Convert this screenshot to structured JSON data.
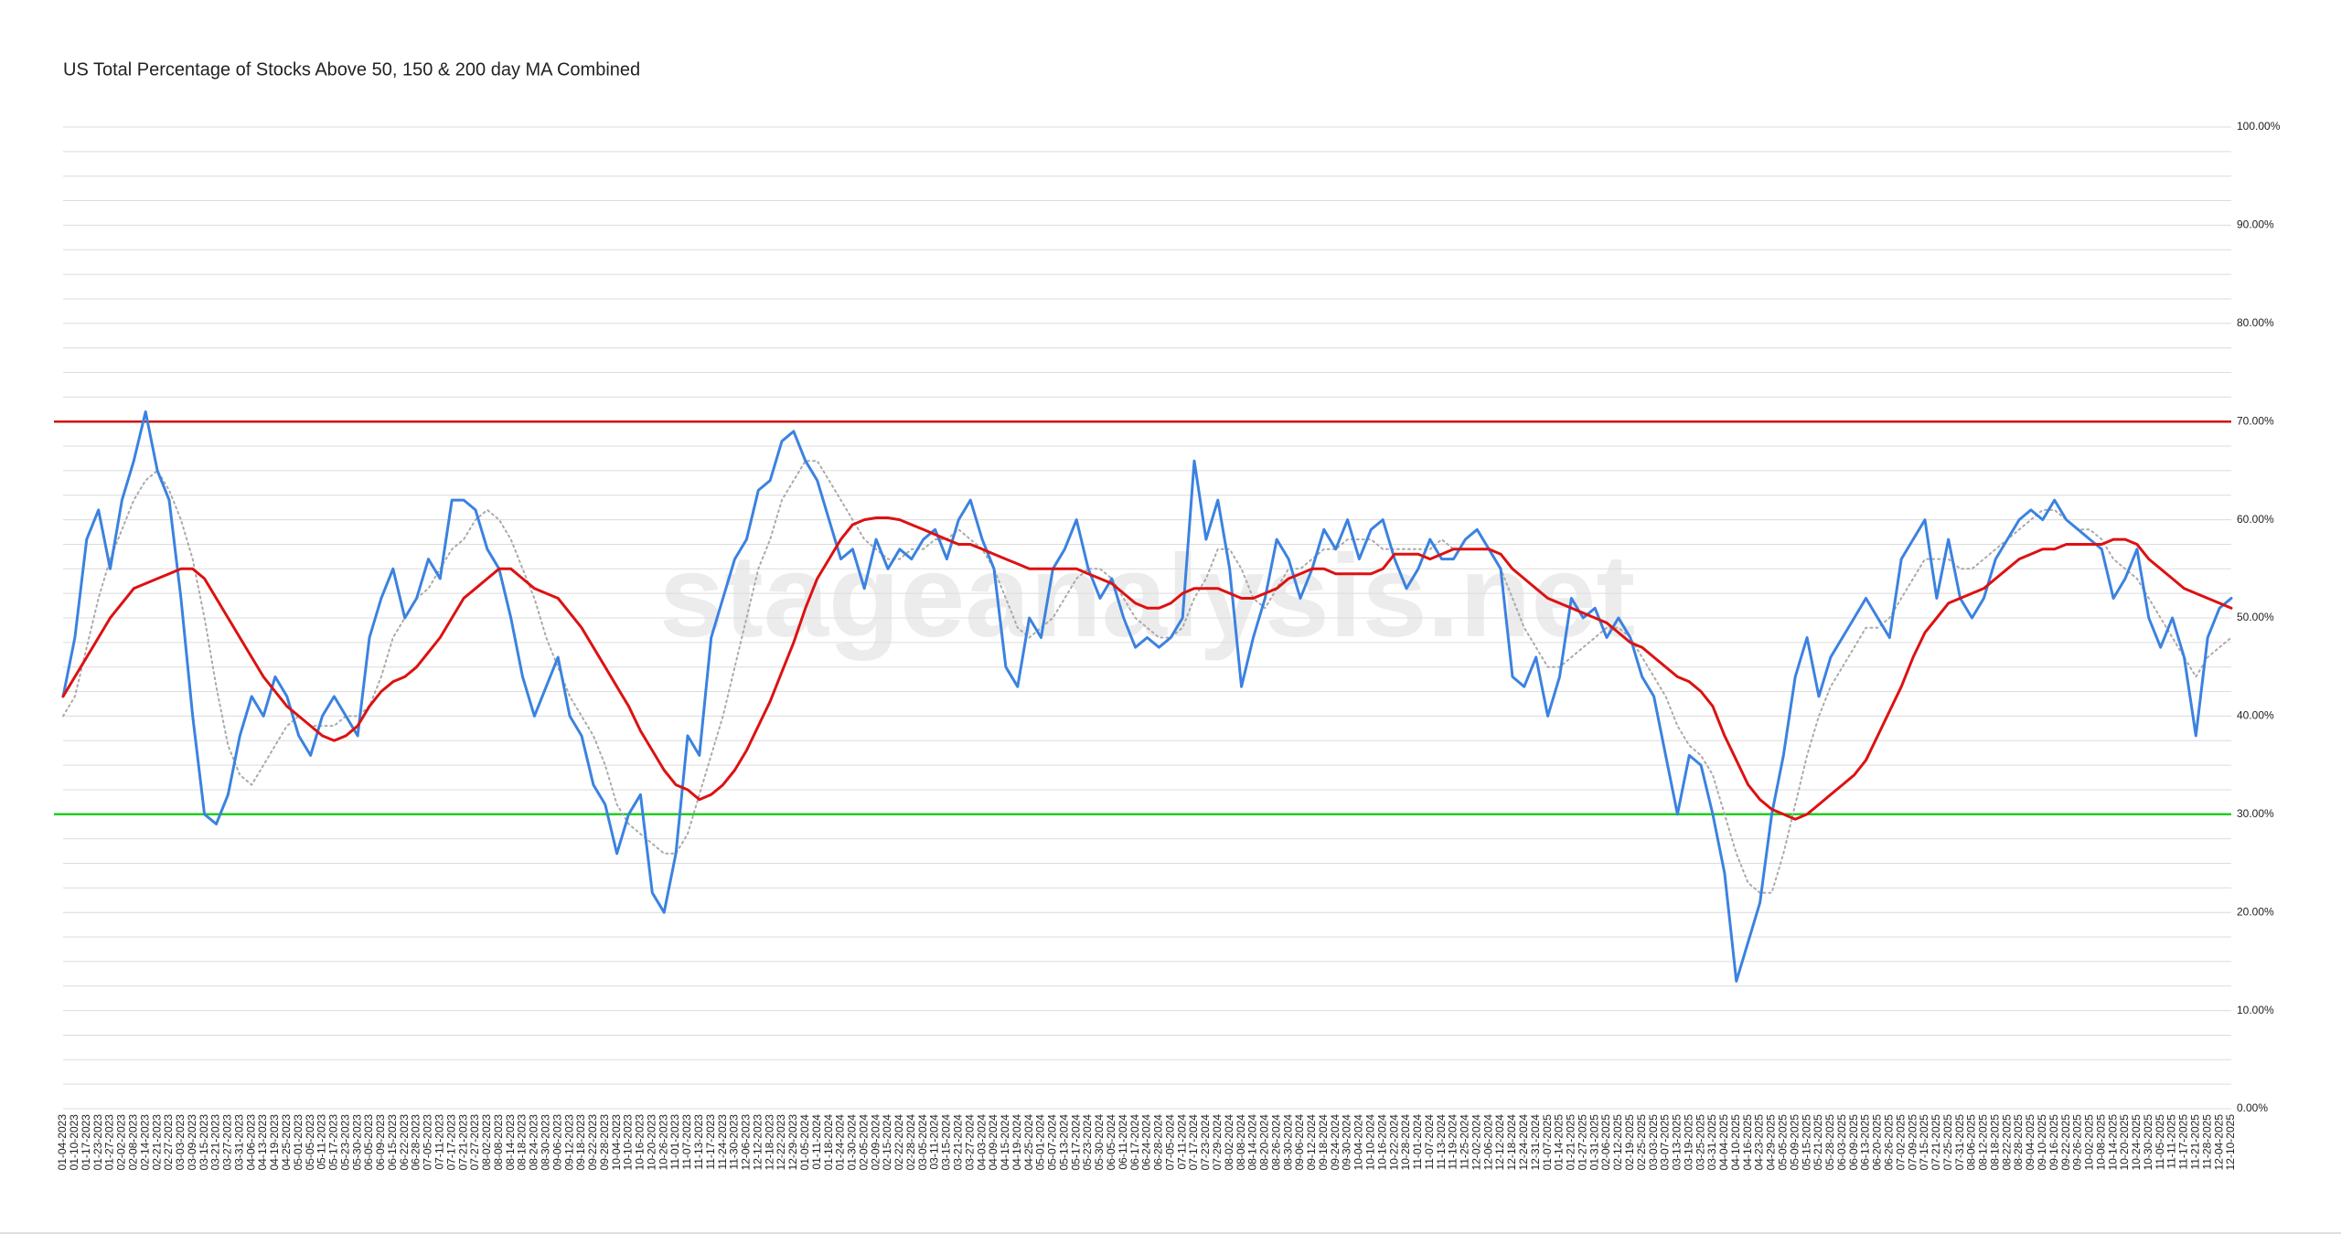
{
  "chart_data": {
    "type": "line",
    "title": "US Total Percentage of Stocks Above 50, 150 & 200 day MA Combined",
    "watermark": "stageanalysis.net",
    "x": [
      "01-04-2023",
      "01-10-2023",
      "01-17-2023",
      "01-23-2023",
      "01-27-2023",
      "02-02-2023",
      "02-08-2023",
      "02-14-2023",
      "02-21-2023",
      "02-27-2023",
      "03-03-2023",
      "03-09-2023",
      "03-15-2023",
      "03-21-2023",
      "03-27-2023",
      "03-31-2023",
      "04-06-2023",
      "04-13-2023",
      "04-19-2023",
      "04-25-2023",
      "05-01-2023",
      "05-05-2023",
      "05-11-2023",
      "05-17-2023",
      "05-23-2023",
      "05-30-2023",
      "06-05-2023",
      "06-09-2023",
      "06-15-2023",
      "06-22-2023",
      "06-28-2023",
      "07-05-2023",
      "07-11-2023",
      "07-17-2023",
      "07-21-2023",
      "07-27-2023",
      "08-02-2023",
      "08-08-2023",
      "08-14-2023",
      "08-18-2023",
      "08-24-2023",
      "08-30-2023",
      "09-06-2023",
      "09-12-2023",
      "09-18-2023",
      "09-22-2023",
      "09-28-2023",
      "10-04-2023",
      "10-10-2023",
      "10-16-2023",
      "10-20-2023",
      "10-26-2023",
      "11-01-2023",
      "11-07-2023",
      "11-13-2023",
      "11-17-2023",
      "11-24-2023",
      "11-30-2023",
      "12-06-2023",
      "12-12-2023",
      "12-18-2023",
      "12-22-2023",
      "12-29-2023",
      "01-05-2024",
      "01-11-2024",
      "01-18-2024",
      "01-24-2024",
      "01-30-2024",
      "02-05-2024",
      "02-09-2024",
      "02-15-2024",
      "02-22-2024",
      "02-28-2024",
      "03-05-2024",
      "03-11-2024",
      "03-15-2024",
      "03-21-2024",
      "03-27-2024",
      "04-03-2024",
      "04-09-2024",
      "04-15-2024",
      "04-19-2024",
      "04-25-2024",
      "05-01-2024",
      "05-07-2024",
      "05-13-2024",
      "05-17-2024",
      "05-23-2024",
      "05-30-2024",
      "06-05-2024",
      "06-11-2024",
      "06-17-2024",
      "06-24-2024",
      "06-28-2024",
      "07-05-2024",
      "07-11-2024",
      "07-17-2024",
      "07-23-2024",
      "07-29-2024",
      "08-02-2024",
      "08-08-2024",
      "08-14-2024",
      "08-20-2024",
      "08-26-2024",
      "08-30-2024",
      "09-06-2024",
      "09-12-2024",
      "09-18-2024",
      "09-24-2024",
      "09-30-2024",
      "10-04-2024",
      "10-10-2024",
      "10-16-2024",
      "10-22-2024",
      "10-28-2024",
      "11-01-2024",
      "11-07-2024",
      "11-13-2024",
      "11-19-2024",
      "11-25-2024",
      "12-02-2024",
      "12-06-2024",
      "12-12-2024",
      "12-18-2024",
      "12-24-2024",
      "12-31-2024",
      "01-07-2025",
      "01-14-2025",
      "01-21-2025",
      "01-27-2025",
      "01-31-2025",
      "02-06-2025",
      "02-12-2025",
      "02-19-2025",
      "02-25-2025",
      "03-03-2025",
      "03-07-2025",
      "03-13-2025",
      "03-19-2025",
      "03-25-2025",
      "03-31-2025",
      "04-04-2025",
      "04-10-2025",
      "04-16-2025",
      "04-23-2025",
      "04-29-2025",
      "05-05-2025",
      "05-09-2025",
      "05-15-2025",
      "05-21-2025",
      "05-28-2025",
      "06-03-2025",
      "06-09-2025",
      "06-13-2025",
      "06-20-2025",
      "06-26-2025",
      "07-02-2025",
      "07-09-2025",
      "07-15-2025",
      "07-21-2025",
      "07-25-2025",
      "07-31-2025",
      "08-06-2025",
      "08-12-2025",
      "08-18-2025",
      "08-22-2025",
      "08-28-2025",
      "09-04-2025",
      "09-10-2025",
      "09-16-2025",
      "09-22-2025",
      "09-26-2025",
      "10-02-2025",
      "10-08-2025",
      "10-14-2025",
      "10-20-2025",
      "10-24-2025",
      "10-30-2025",
      "11-05-2025",
      "11-11-2025",
      "11-17-2025",
      "11-21-2025",
      "11-28-2025",
      "12-04-2025",
      "12-10-2025"
    ],
    "series": [
      {
        "color": "#aaaaaa",
        "line_style": "dotted",
        "width": 2,
        "values": [
          40,
          42,
          47,
          52,
          56,
          59,
          62,
          64,
          65,
          63,
          60,
          56,
          50,
          43,
          37,
          34,
          33,
          35,
          37,
          39,
          40,
          39,
          39,
          39,
          40,
          40,
          41,
          44,
          48,
          50,
          52,
          53,
          55,
          57,
          58,
          60,
          61,
          60,
          58,
          55,
          52,
          48,
          45,
          42,
          40,
          38,
          35,
          31,
          29,
          28,
          27,
          26,
          26,
          28,
          32,
          36,
          40,
          45,
          50,
          55,
          58,
          62,
          64,
          66,
          66,
          64,
          62,
          60,
          58,
          57,
          56,
          56,
          57,
          57,
          58,
          58,
          59,
          58,
          57,
          55,
          52,
          49,
          48,
          49,
          50,
          52,
          54,
          55,
          55,
          54,
          52,
          50,
          49,
          48,
          48,
          49,
          52,
          54,
          57,
          57,
          55,
          52,
          51,
          53,
          55,
          55,
          56,
          57,
          57,
          58,
          58,
          58,
          57,
          57,
          57,
          57,
          57,
          58,
          57,
          57,
          57,
          57,
          55,
          52,
          49,
          47,
          45,
          45,
          46,
          47,
          48,
          49,
          49,
          48,
          46,
          44,
          42,
          39,
          37,
          36,
          34,
          30,
          26,
          23,
          22,
          22,
          26,
          31,
          36,
          40,
          43,
          45,
          47,
          49,
          49,
          50,
          52,
          54,
          56,
          56,
          56,
          55,
          55,
          56,
          57,
          58,
          59,
          60,
          61,
          61,
          60,
          59,
          59,
          58,
          56,
          55,
          54,
          52,
          50,
          48,
          46,
          44,
          46,
          47,
          48
        ]
      },
      {
        "color": "#3b82e0",
        "line_style": "solid",
        "width": 3,
        "values": [
          42,
          48,
          58,
          61,
          55,
          62,
          66,
          71,
          65,
          62,
          52,
          40,
          30,
          29,
          32,
          38,
          42,
          40,
          44,
          42,
          38,
          36,
          40,
          42,
          40,
          38,
          48,
          52,
          55,
          50,
          52,
          56,
          54,
          62,
          62,
          61,
          57,
          55,
          50,
          44,
          40,
          43,
          46,
          40,
          38,
          33,
          31,
          26,
          30,
          32,
          22,
          20,
          26,
          38,
          36,
          48,
          52,
          56,
          58,
          63,
          64,
          68,
          69,
          66,
          64,
          60,
          56,
          57,
          53,
          58,
          55,
          57,
          56,
          58,
          59,
          56,
          60,
          62,
          58,
          55,
          45,
          43,
          50,
          48,
          55,
          57,
          60,
          55,
          52,
          54,
          50,
          47,
          48,
          47,
          48,
          50,
          66,
          58,
          62,
          55,
          43,
          48,
          52,
          58,
          56,
          52,
          55,
          59,
          57,
          60,
          56,
          59,
          60,
          56,
          53,
          55,
          58,
          56,
          56,
          58,
          59,
          57,
          55,
          44,
          43,
          46,
          40,
          44,
          52,
          50,
          51,
          48,
          50,
          48,
          44,
          42,
          36,
          30,
          36,
          35,
          30,
          24,
          13,
          17,
          21,
          30,
          36,
          44,
          48,
          42,
          46,
          48,
          50,
          52,
          50,
          48,
          56,
          58,
          60,
          52,
          58,
          52,
          50,
          52,
          56,
          58,
          60,
          61,
          60,
          62,
          60,
          59,
          58,
          57,
          52,
          54,
          57,
          50,
          47,
          50,
          46,
          38,
          48,
          51,
          52
        ]
      },
      {
        "color": "#dd1111",
        "line_style": "solid",
        "width": 3,
        "values": [
          42,
          44,
          46,
          48,
          50,
          51.5,
          53,
          53.5,
          54,
          54.5,
          55,
          55,
          54,
          52,
          50,
          48,
          46,
          44,
          42.5,
          41,
          40,
          39,
          38,
          37.5,
          38,
          39,
          41,
          42.5,
          43.5,
          44,
          45,
          46.5,
          48,
          50,
          52,
          53,
          54,
          55,
          55,
          54,
          53,
          52.5,
          52,
          50.5,
          49,
          47,
          45,
          43,
          41,
          38.5,
          36.5,
          34.5,
          33,
          32.5,
          31.5,
          32,
          33,
          34.5,
          36.5,
          39,
          41.5,
          44.5,
          47.5,
          51,
          54,
          56,
          58,
          59.5,
          60,
          60.2,
          60.2,
          60,
          59.5,
          59,
          58.5,
          58,
          57.5,
          57.5,
          57,
          56.5,
          56,
          55.5,
          55,
          55,
          55,
          55,
          55,
          54.5,
          54,
          53.5,
          52.5,
          51.5,
          51,
          51,
          51.5,
          52.5,
          53,
          53,
          53,
          52.5,
          52,
          52,
          52.5,
          53,
          54,
          54.5,
          55,
          55,
          54.5,
          54.5,
          54.5,
          54.5,
          55,
          56.5,
          56.5,
          56.5,
          56,
          56.5,
          57,
          57,
          57,
          57,
          56.5,
          55,
          54,
          53,
          52,
          51.5,
          51,
          50.5,
          50,
          49.5,
          48.5,
          47.5,
          47,
          46,
          45,
          44,
          43.5,
          42.5,
          41,
          38,
          35.5,
          33,
          31.5,
          30.5,
          30,
          29.5,
          30,
          31,
          32,
          33,
          34,
          35.5,
          38,
          40.5,
          43,
          46,
          48.5,
          50,
          51.5,
          52,
          52.5,
          53,
          54,
          55,
          56,
          56.5,
          57,
          57,
          57.5,
          57.5,
          57.5,
          57.5,
          58,
          58,
          57.5,
          56,
          55,
          54,
          53,
          52.5,
          52,
          51.5,
          51
        ]
      }
    ],
    "ylim": [
      0,
      100
    ],
    "yticks": [
      {
        "value": 0,
        "label": "0.00%"
      },
      {
        "value": 10,
        "label": "10.00%"
      },
      {
        "value": 20,
        "label": "20.00%"
      },
      {
        "value": 30,
        "label": "30.00%"
      },
      {
        "value": 40,
        "label": "40.00%"
      },
      {
        "value": 50,
        "label": "50.00%"
      },
      {
        "value": 60,
        "label": "60.00%"
      },
      {
        "value": 70,
        "label": "70.00%"
      },
      {
        "value": 80,
        "label": "80.00%"
      },
      {
        "value": 90,
        "label": "90.00%"
      },
      {
        "value": 100,
        "label": "100.00%"
      }
    ],
    "ygrid_lines": [
      0,
      2.5,
      5,
      7.5,
      10,
      12.5,
      15,
      17.5,
      20,
      22.5,
      25,
      27.5,
      30,
      32.5,
      35,
      37.5,
      40,
      42.5,
      45,
      47.5,
      50,
      52.5,
      55,
      57.5,
      60,
      62.5,
      65,
      67.5,
      70,
      72.5,
      75,
      77.5,
      80,
      82.5,
      85,
      87.5,
      90,
      92.5,
      95,
      97.5,
      100
    ],
    "reference_lines": [
      {
        "value": 70,
        "color": "#cc1111"
      },
      {
        "value": 30,
        "color": "#22cc22"
      }
    ],
    "grid": true
  }
}
